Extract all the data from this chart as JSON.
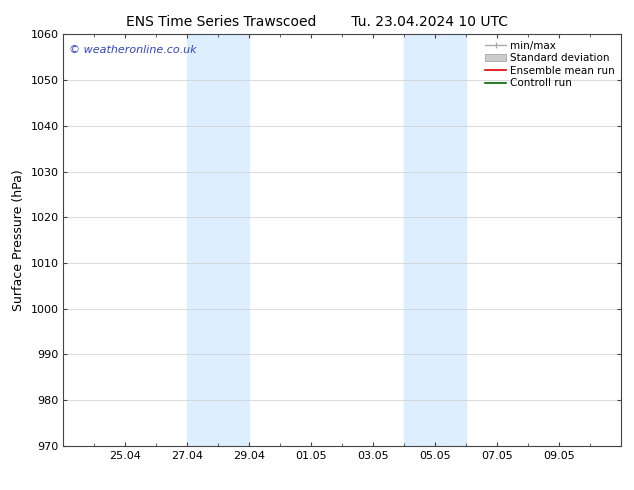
{
  "title_left": "ENS Time Series Trawscoed",
  "title_right": "Tu. 23.04.2024 10 UTC",
  "ylabel": "Surface Pressure (hPa)",
  "ylim": [
    970,
    1060
  ],
  "yticks": [
    970,
    980,
    990,
    1000,
    1010,
    1020,
    1030,
    1040,
    1050,
    1060
  ],
  "xtick_labels": [
    "25.04",
    "27.04",
    "29.04",
    "01.05",
    "03.05",
    "05.05",
    "07.05",
    "09.05"
  ],
  "xtick_positions": [
    2,
    4,
    6,
    8,
    10,
    12,
    14,
    16
  ],
  "xlim": [
    0,
    18
  ],
  "shaded_bands": [
    {
      "x_start": 4,
      "x_end": 6
    },
    {
      "x_start": 11,
      "x_end": 13
    }
  ],
  "shaded_color": "#ddeeff",
  "watermark": "© weatheronline.co.uk",
  "watermark_color": "#3344bb",
  "background_color": "#ffffff",
  "grid_color": "#cccccc",
  "title_fontsize": 10,
  "ylabel_fontsize": 9,
  "tick_fontsize": 8,
  "legend_fontsize": 7.5
}
